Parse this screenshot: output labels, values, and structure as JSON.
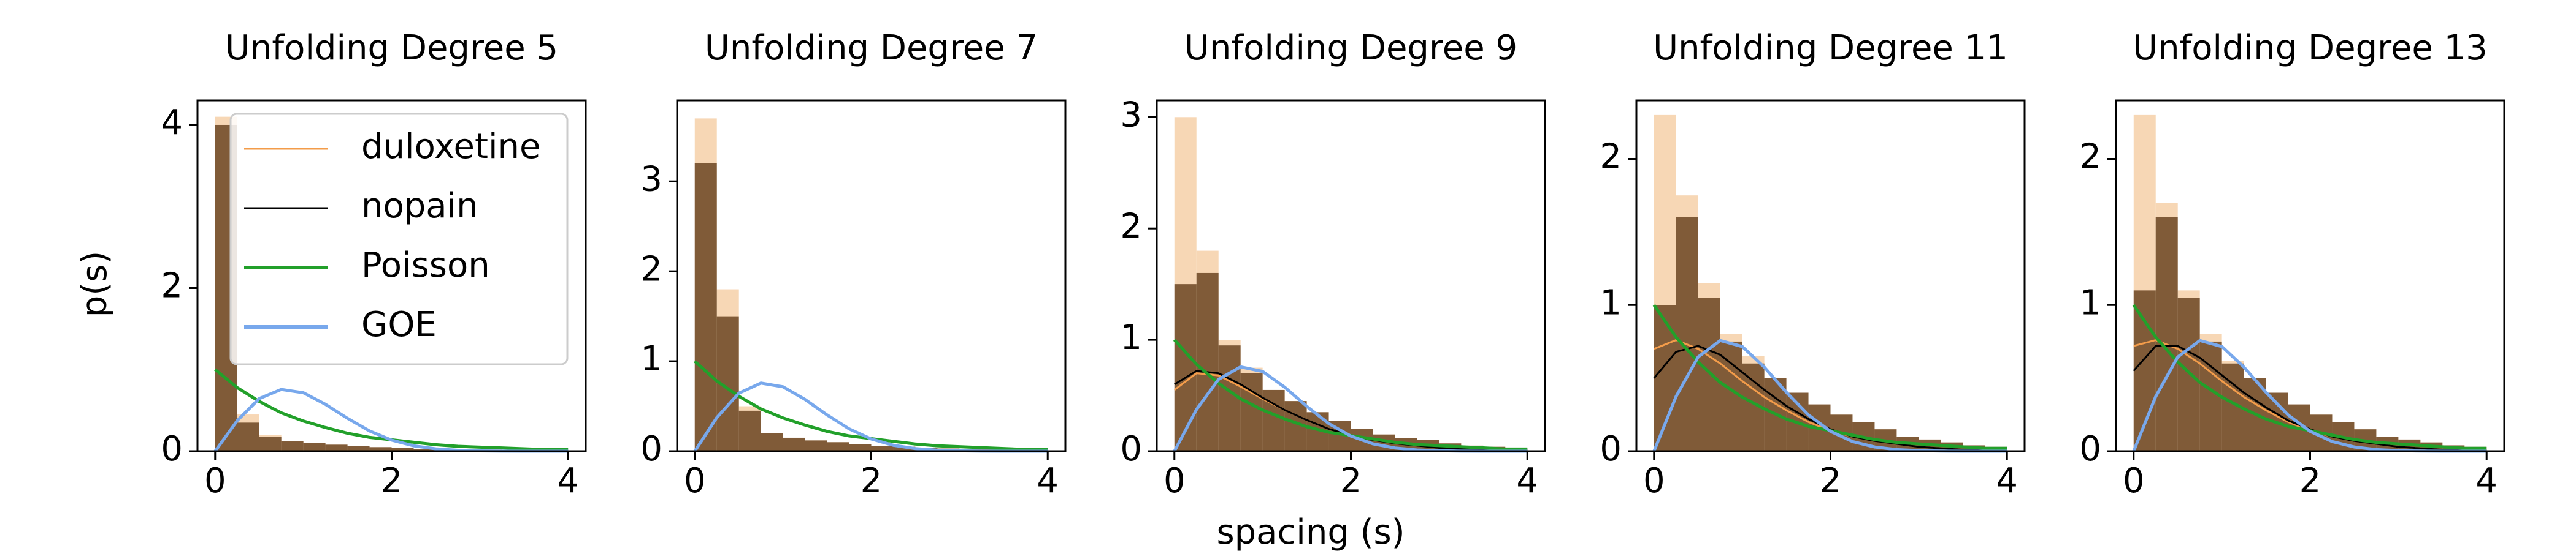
{
  "chart_data": [
    {
      "type": "histogram",
      "title": "Unfolding Degree 5",
      "ylabel": "p(s)",
      "legend": "upper right",
      "xlim": [
        -0.2,
        4.2
      ],
      "ylim": [
        0,
        4.3
      ],
      "xticks": [
        0,
        2,
        4
      ],
      "yticks": [
        0,
        2,
        4
      ],
      "bins": [
        0,
        0.25,
        0.5,
        0.75,
        1,
        1.25,
        1.5,
        1.75,
        2,
        2.25,
        2.5,
        2.75,
        3,
        3.25,
        3.5,
        3.75,
        4
      ],
      "x": [
        0,
        0.25,
        0.5,
        0.75,
        1,
        1.25,
        1.5,
        1.75,
        2,
        2.25,
        2.5,
        2.75,
        3,
        3.25,
        3.5,
        3.75,
        4
      ],
      "series": [
        {
          "name": "duloxetine",
          "color": "#f39c4a",
          "fill": "#f6d3ad",
          "counts": [
            4.1,
            0.45,
            0.2,
            0.12,
            0.1,
            0.08,
            0.06,
            0.05,
            0.04,
            0.03,
            0.03,
            0.02,
            0.02,
            0.01,
            0.01,
            0.01
          ]
        },
        {
          "name": "nopain",
          "color": "#000000",
          "fill": "#6b4522",
          "counts": [
            4.0,
            0.35,
            0.18,
            0.12,
            0.1,
            0.08,
            0.06,
            0.05,
            0.04,
            0.03,
            0.03,
            0.02,
            0.02,
            0.01,
            0.01,
            0.01
          ]
        },
        {
          "name": "Poisson",
          "color": "#22a02a",
          "values": [
            1,
            0.78,
            0.61,
            0.47,
            0.37,
            0.29,
            0.22,
            0.17,
            0.14,
            0.11,
            0.08,
            0.06,
            0.05,
            0.04,
            0.03,
            0.02,
            0.02
          ]
        },
        {
          "name": "GOE",
          "color": "#78a8ec",
          "values": [
            0,
            0.374,
            0.645,
            0.757,
            0.716,
            0.575,
            0.403,
            0.248,
            0.136,
            0.066,
            0.029,
            0.011,
            0.004,
            0.001,
            0,
            0,
            0
          ]
        }
      ]
    },
    {
      "type": "histogram",
      "title": "Unfolding Degree 7",
      "xlim": [
        -0.2,
        4.2
      ],
      "ylim": [
        0,
        3.9
      ],
      "xticks": [
        0,
        2,
        4
      ],
      "yticks": [
        0,
        1,
        2,
        3
      ],
      "bins": [
        0,
        0.25,
        0.5,
        0.75,
        1,
        1.25,
        1.5,
        1.75,
        2,
        2.25,
        2.5,
        2.75,
        3,
        3.25,
        3.5,
        3.75,
        4
      ],
      "x": [
        0,
        0.25,
        0.5,
        0.75,
        1,
        1.25,
        1.5,
        1.75,
        2,
        2.25,
        2.5,
        2.75,
        3,
        3.25,
        3.5,
        3.75,
        4
      ],
      "series": [
        {
          "color": "#f39c4a",
          "fill": "#f6d3ad",
          "counts": [
            3.7,
            1.8,
            0.5,
            0.2,
            0.15,
            0.12,
            0.1,
            0.08,
            0.06,
            0.05,
            0.04,
            0.03,
            0.02,
            0.02,
            0.01,
            0.01
          ]
        },
        {
          "color": "#000000",
          "fill": "#6b4522",
          "counts": [
            3.2,
            1.5,
            0.45,
            0.2,
            0.15,
            0.12,
            0.1,
            0.08,
            0.06,
            0.05,
            0.04,
            0.03,
            0.02,
            0.02,
            0.01,
            0.01
          ]
        },
        {
          "color": "#22a02a",
          "values": [
            1,
            0.78,
            0.61,
            0.47,
            0.37,
            0.29,
            0.22,
            0.17,
            0.14,
            0.11,
            0.08,
            0.06,
            0.05,
            0.04,
            0.03,
            0.02,
            0.02
          ]
        },
        {
          "color": "#78a8ec",
          "values": [
            0,
            0.374,
            0.645,
            0.757,
            0.716,
            0.575,
            0.403,
            0.248,
            0.136,
            0.066,
            0.029,
            0.011,
            0.004,
            0.001,
            0,
            0,
            0
          ]
        }
      ]
    },
    {
      "type": "histogram",
      "title": "Unfolding Degree 9",
      "xlabel": "spacing (s)",
      "xlim": [
        -0.2,
        4.2
      ],
      "ylim": [
        0,
        3.15
      ],
      "xticks": [
        0,
        2,
        4
      ],
      "yticks": [
        0,
        1,
        2,
        3
      ],
      "bins": [
        0,
        0.25,
        0.5,
        0.75,
        1,
        1.25,
        1.5,
        1.75,
        2,
        2.25,
        2.5,
        2.75,
        3,
        3.25,
        3.5,
        3.75,
        4
      ],
      "x": [
        0,
        0.25,
        0.5,
        0.75,
        1,
        1.25,
        1.5,
        1.75,
        2,
        2.25,
        2.5,
        2.75,
        3,
        3.25,
        3.5,
        3.75,
        4
      ],
      "series": [
        {
          "color": "#f39c4a",
          "fill": "#f6d3ad",
          "counts": [
            3.0,
            1.8,
            1.0,
            0.75,
            0.55,
            0.45,
            0.35,
            0.27,
            0.2,
            0.15,
            0.12,
            0.1,
            0.07,
            0.05,
            0.04,
            0.03
          ],
          "values": [
            0.55,
            0.7,
            0.68,
            0.58,
            0.47,
            0.37,
            0.28,
            0.2,
            0.14,
            0.1,
            0.07,
            0.05,
            0.03,
            0.02,
            0.01,
            0.01,
            0.01
          ]
        },
        {
          "color": "#000000",
          "fill": "#6b4522",
          "counts": [
            1.5,
            1.6,
            0.95,
            0.7,
            0.55,
            0.45,
            0.35,
            0.27,
            0.2,
            0.15,
            0.12,
            0.1,
            0.07,
            0.05,
            0.04,
            0.03
          ],
          "values": [
            0.6,
            0.72,
            0.7,
            0.6,
            0.48,
            0.37,
            0.28,
            0.2,
            0.14,
            0.1,
            0.07,
            0.05,
            0.03,
            0.02,
            0.01,
            0.01,
            0.01
          ]
        },
        {
          "color": "#22a02a",
          "values": [
            1,
            0.78,
            0.61,
            0.47,
            0.37,
            0.29,
            0.22,
            0.17,
            0.14,
            0.11,
            0.08,
            0.06,
            0.05,
            0.04,
            0.03,
            0.02,
            0.02
          ]
        },
        {
          "color": "#78a8ec",
          "values": [
            0,
            0.374,
            0.645,
            0.757,
            0.716,
            0.575,
            0.403,
            0.248,
            0.136,
            0.066,
            0.029,
            0.011,
            0.004,
            0.001,
            0,
            0,
            0
          ]
        }
      ]
    },
    {
      "type": "histogram",
      "title": "Unfolding Degree 11",
      "xlim": [
        -0.2,
        4.2
      ],
      "ylim": [
        0,
        2.4
      ],
      "xticks": [
        0,
        2,
        4
      ],
      "yticks": [
        0,
        1,
        2
      ],
      "bins": [
        0,
        0.25,
        0.5,
        0.75,
        1,
        1.25,
        1.5,
        1.75,
        2,
        2.25,
        2.5,
        2.75,
        3,
        3.25,
        3.5,
        3.75,
        4
      ],
      "x": [
        0,
        0.25,
        0.5,
        0.75,
        1,
        1.25,
        1.5,
        1.75,
        2,
        2.25,
        2.5,
        2.75,
        3,
        3.25,
        3.5,
        3.75,
        4
      ],
      "series": [
        {
          "color": "#f39c4a",
          "fill": "#f6d3ad",
          "counts": [
            2.3,
            1.75,
            1.15,
            0.8,
            0.65,
            0.5,
            0.4,
            0.32,
            0.25,
            0.2,
            0.15,
            0.1,
            0.08,
            0.06,
            0.04,
            0.03
          ],
          "values": [
            0.7,
            0.76,
            0.7,
            0.6,
            0.48,
            0.37,
            0.28,
            0.2,
            0.14,
            0.1,
            0.07,
            0.05,
            0.03,
            0.02,
            0.01,
            0.01,
            0.01
          ]
        },
        {
          "color": "#000000",
          "fill": "#6b4522",
          "counts": [
            1.0,
            1.6,
            1.05,
            0.75,
            0.6,
            0.5,
            0.4,
            0.32,
            0.25,
            0.2,
            0.15,
            0.1,
            0.08,
            0.06,
            0.04,
            0.03
          ],
          "values": [
            0.5,
            0.68,
            0.72,
            0.66,
            0.54,
            0.42,
            0.31,
            0.22,
            0.15,
            0.1,
            0.07,
            0.05,
            0.03,
            0.02,
            0.01,
            0.01,
            0.01
          ]
        },
        {
          "color": "#22a02a",
          "values": [
            1,
            0.78,
            0.61,
            0.47,
            0.37,
            0.29,
            0.22,
            0.17,
            0.14,
            0.11,
            0.08,
            0.06,
            0.05,
            0.04,
            0.03,
            0.02,
            0.02
          ]
        },
        {
          "color": "#78a8ec",
          "values": [
            0,
            0.374,
            0.645,
            0.757,
            0.716,
            0.575,
            0.403,
            0.248,
            0.136,
            0.066,
            0.029,
            0.011,
            0.004,
            0.001,
            0,
            0,
            0
          ]
        }
      ]
    },
    {
      "type": "histogram",
      "title": "Unfolding Degree 13",
      "xlim": [
        -0.2,
        4.2
      ],
      "ylim": [
        0,
        2.4
      ],
      "xticks": [
        0,
        2,
        4
      ],
      "yticks": [
        0,
        1,
        2
      ],
      "bins": [
        0,
        0.25,
        0.5,
        0.75,
        1,
        1.25,
        1.5,
        1.75,
        2,
        2.25,
        2.5,
        2.75,
        3,
        3.25,
        3.5,
        3.75,
        4
      ],
      "x": [
        0,
        0.25,
        0.5,
        0.75,
        1,
        1.25,
        1.5,
        1.75,
        2,
        2.25,
        2.5,
        2.75,
        3,
        3.25,
        3.5,
        3.75,
        4
      ],
      "series": [
        {
          "color": "#f39c4a",
          "fill": "#f6d3ad",
          "counts": [
            2.3,
            1.7,
            1.1,
            0.8,
            0.62,
            0.5,
            0.4,
            0.32,
            0.25,
            0.2,
            0.15,
            0.1,
            0.08,
            0.06,
            0.04,
            0.03
          ],
          "values": [
            0.72,
            0.76,
            0.7,
            0.6,
            0.48,
            0.37,
            0.28,
            0.2,
            0.14,
            0.1,
            0.07,
            0.05,
            0.03,
            0.02,
            0.01,
            0.01,
            0.01
          ]
        },
        {
          "color": "#000000",
          "fill": "#6b4522",
          "counts": [
            1.1,
            1.6,
            1.05,
            0.75,
            0.6,
            0.5,
            0.4,
            0.32,
            0.25,
            0.2,
            0.15,
            0.1,
            0.08,
            0.06,
            0.04,
            0.03
          ],
          "values": [
            0.55,
            0.72,
            0.72,
            0.64,
            0.52,
            0.4,
            0.3,
            0.21,
            0.15,
            0.1,
            0.07,
            0.05,
            0.03,
            0.02,
            0.01,
            0.01,
            0.01
          ]
        },
        {
          "color": "#22a02a",
          "values": [
            1,
            0.78,
            0.61,
            0.47,
            0.37,
            0.29,
            0.22,
            0.17,
            0.14,
            0.11,
            0.08,
            0.06,
            0.05,
            0.04,
            0.03,
            0.02,
            0.02
          ]
        },
        {
          "color": "#78a8ec",
          "values": [
            0,
            0.374,
            0.645,
            0.757,
            0.716,
            0.575,
            0.403,
            0.248,
            0.136,
            0.066,
            0.029,
            0.011,
            0.004,
            0.001,
            0,
            0,
            0
          ]
        }
      ]
    }
  ]
}
